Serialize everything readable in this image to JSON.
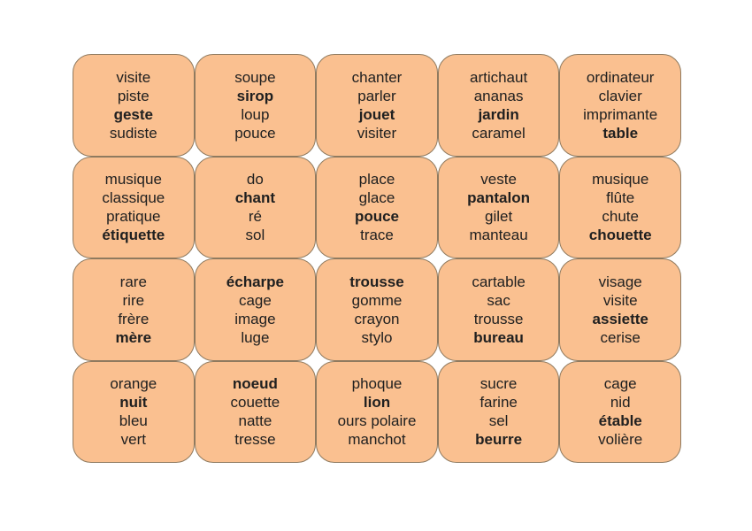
{
  "board": {
    "columns": 5,
    "rows": 4,
    "card_fill": "#FAC090",
    "card_border": "#8F7A5F",
    "text_color": "#202020",
    "cards": [
      {
        "words": [
          {
            "text": "visite",
            "bold": false
          },
          {
            "text": "piste",
            "bold": false
          },
          {
            "text": "geste",
            "bold": true
          },
          {
            "text": "sudiste",
            "bold": false
          }
        ]
      },
      {
        "words": [
          {
            "text": "soupe",
            "bold": false
          },
          {
            "text": "sirop",
            "bold": true
          },
          {
            "text": "loup",
            "bold": false
          },
          {
            "text": "pouce",
            "bold": false
          }
        ]
      },
      {
        "words": [
          {
            "text": "chanter",
            "bold": false
          },
          {
            "text": "parler",
            "bold": false
          },
          {
            "text": "jouet",
            "bold": true
          },
          {
            "text": "visiter",
            "bold": false
          }
        ]
      },
      {
        "words": [
          {
            "text": "artichaut",
            "bold": false
          },
          {
            "text": "ananas",
            "bold": false
          },
          {
            "text": "jardin",
            "bold": true
          },
          {
            "text": "caramel",
            "bold": false
          }
        ]
      },
      {
        "words": [
          {
            "text": "ordinateur",
            "bold": false
          },
          {
            "text": "clavier",
            "bold": false
          },
          {
            "text": "imprimante",
            "bold": false
          },
          {
            "text": "table",
            "bold": true
          }
        ]
      },
      {
        "words": [
          {
            "text": "musique",
            "bold": false
          },
          {
            "text": "classique",
            "bold": false
          },
          {
            "text": "pratique",
            "bold": false
          },
          {
            "text": "étiquette",
            "bold": true
          }
        ]
      },
      {
        "words": [
          {
            "text": "do",
            "bold": false
          },
          {
            "text": "chant",
            "bold": true
          },
          {
            "text": "ré",
            "bold": false
          },
          {
            "text": "sol",
            "bold": false
          }
        ]
      },
      {
        "words": [
          {
            "text": "place",
            "bold": false
          },
          {
            "text": "glace",
            "bold": false
          },
          {
            "text": "pouce",
            "bold": true
          },
          {
            "text": "trace",
            "bold": false
          }
        ]
      },
      {
        "words": [
          {
            "text": "veste",
            "bold": false
          },
          {
            "text": "pantalon",
            "bold": true
          },
          {
            "text": "gilet",
            "bold": false
          },
          {
            "text": "manteau",
            "bold": false
          }
        ]
      },
      {
        "words": [
          {
            "text": "musique",
            "bold": false
          },
          {
            "text": "flûte",
            "bold": false
          },
          {
            "text": "chute",
            "bold": false
          },
          {
            "text": "chouette",
            "bold": true
          }
        ]
      },
      {
        "words": [
          {
            "text": "rare",
            "bold": false
          },
          {
            "text": "rire",
            "bold": false
          },
          {
            "text": "frère",
            "bold": false
          },
          {
            "text": "mère",
            "bold": true
          }
        ]
      },
      {
        "words": [
          {
            "text": "écharpe",
            "bold": true
          },
          {
            "text": "cage",
            "bold": false
          },
          {
            "text": "image",
            "bold": false
          },
          {
            "text": "luge",
            "bold": false
          }
        ]
      },
      {
        "words": [
          {
            "text": "trousse",
            "bold": true
          },
          {
            "text": "gomme",
            "bold": false
          },
          {
            "text": "crayon",
            "bold": false
          },
          {
            "text": "stylo",
            "bold": false
          }
        ]
      },
      {
        "words": [
          {
            "text": "cartable",
            "bold": false
          },
          {
            "text": "sac",
            "bold": false
          },
          {
            "text": "trousse",
            "bold": false
          },
          {
            "text": "bureau",
            "bold": true
          }
        ]
      },
      {
        "words": [
          {
            "text": "visage",
            "bold": false
          },
          {
            "text": "visite",
            "bold": false
          },
          {
            "text": "assiette",
            "bold": true
          },
          {
            "text": "cerise",
            "bold": false
          }
        ]
      },
      {
        "words": [
          {
            "text": "orange",
            "bold": false
          },
          {
            "text": "nuit",
            "bold": true
          },
          {
            "text": "bleu",
            "bold": false
          },
          {
            "text": "vert",
            "bold": false
          }
        ]
      },
      {
        "words": [
          {
            "text": "noeud",
            "bold": true
          },
          {
            "text": "couette",
            "bold": false
          },
          {
            "text": "natte",
            "bold": false
          },
          {
            "text": "tresse",
            "bold": false
          }
        ]
      },
      {
        "words": [
          {
            "text": "phoque",
            "bold": false
          },
          {
            "text": "lion",
            "bold": true
          },
          {
            "text": "ours polaire",
            "bold": false
          },
          {
            "text": "manchot",
            "bold": false
          }
        ]
      },
      {
        "words": [
          {
            "text": "sucre",
            "bold": false
          },
          {
            "text": "farine",
            "bold": false
          },
          {
            "text": "sel",
            "bold": false
          },
          {
            "text": "beurre",
            "bold": true
          }
        ]
      },
      {
        "words": [
          {
            "text": "cage",
            "bold": false
          },
          {
            "text": "nid",
            "bold": false
          },
          {
            "text": "étable",
            "bold": true
          },
          {
            "text": "volière",
            "bold": false
          }
        ]
      }
    ]
  }
}
